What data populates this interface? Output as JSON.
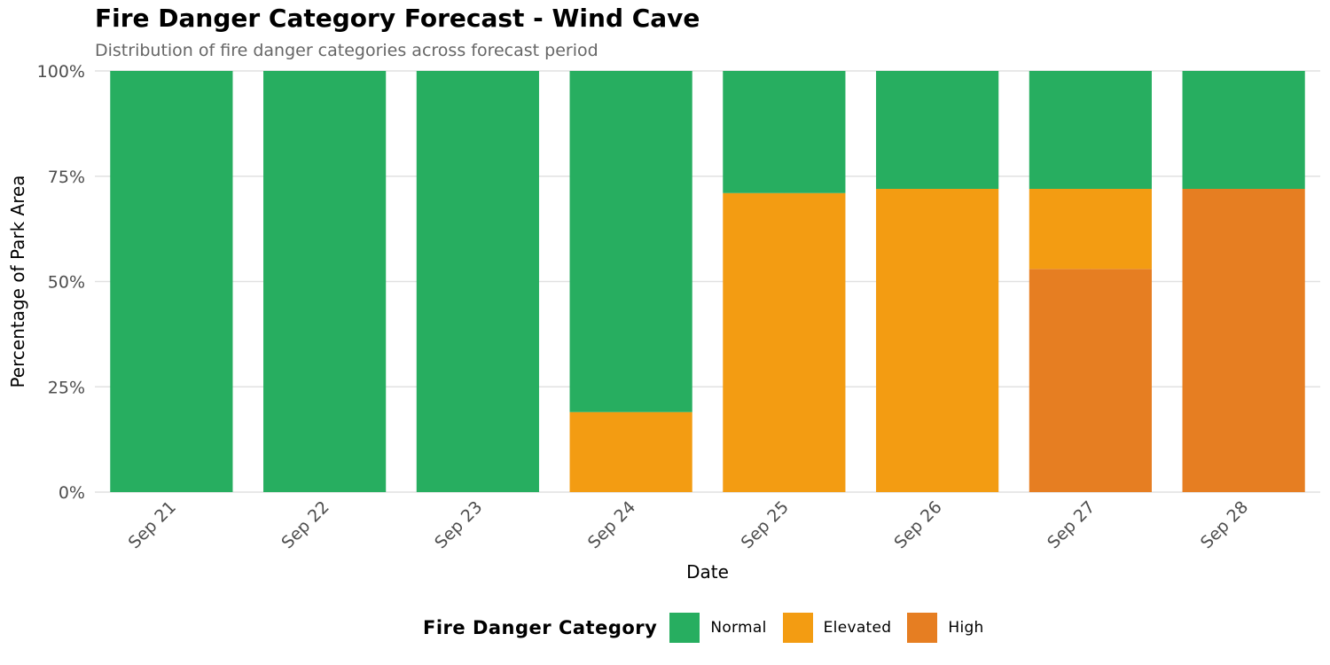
{
  "chart_data": {
    "type": "bar",
    "stacked": true,
    "title": "Fire Danger Category Forecast - Wind Cave",
    "subtitle": "Distribution of fire danger categories across forecast period",
    "xlabel": "Date",
    "ylabel": "Percentage of Park Area",
    "ylim": [
      0,
      100
    ],
    "yticks": [
      0,
      25,
      50,
      75,
      100
    ],
    "ytick_labels": [
      "0%",
      "25%",
      "50%",
      "75%",
      "100%"
    ],
    "grid": true,
    "categories": [
      "Sep 21",
      "Sep 22",
      "Sep 23",
      "Sep 24",
      "Sep 25",
      "Sep 26",
      "Sep 27",
      "Sep 28"
    ],
    "series": [
      {
        "name": "High",
        "color": "#E67E22",
        "values": [
          0,
          0,
          0,
          0,
          0,
          0,
          53,
          72
        ]
      },
      {
        "name": "Elevated",
        "color": "#F39C12",
        "values": [
          0,
          0,
          0,
          19,
          71,
          72,
          19,
          0
        ]
      },
      {
        "name": "Normal",
        "color": "#27AE60",
        "values": [
          100,
          100,
          100,
          81,
          29,
          28,
          28,
          28
        ]
      }
    ],
    "legend": {
      "title": "Fire Danger Category",
      "position": "bottom",
      "items": [
        {
          "name": "Normal",
          "color": "#27AE60"
        },
        {
          "name": "Elevated",
          "color": "#F39C12"
        },
        {
          "name": "High",
          "color": "#E67E22"
        }
      ]
    }
  }
}
